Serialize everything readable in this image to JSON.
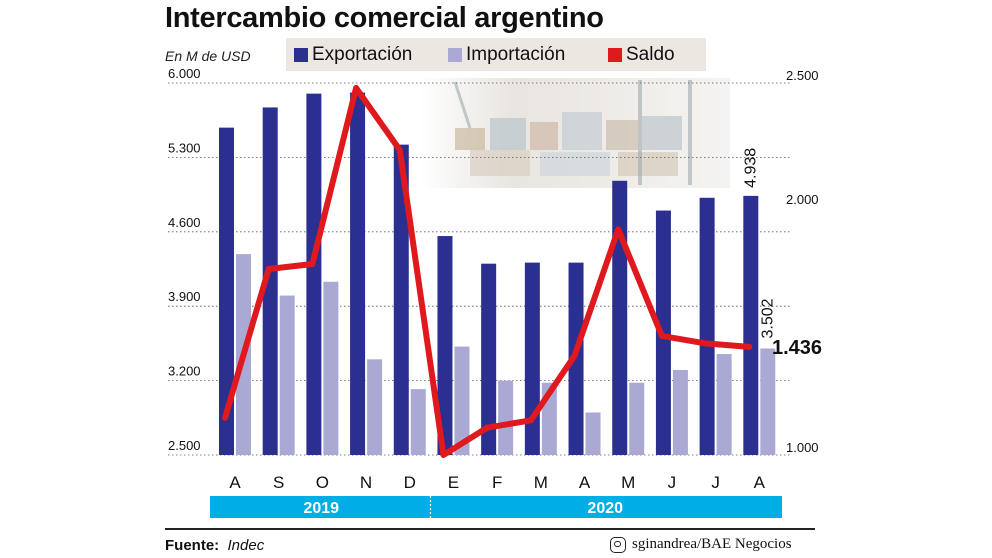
{
  "title": "Intercambio comercial argentino",
  "unit_label": "En M de USD",
  "source_label": "Fuente:",
  "source_value": "Indec",
  "credit": "sginandrea/BAE Negocios",
  "colors": {
    "exportacion": "#2b2f8f",
    "importacion": "#a9a9d4",
    "saldo": "#e0191f",
    "year_bar": "#00aee6",
    "legend_bg": "#ece7e0"
  },
  "chart_data": {
    "type": "bar",
    "categories": [
      "A",
      "S",
      "O",
      "N",
      "D",
      "E",
      "F",
      "M",
      "A",
      "M",
      "J",
      "J",
      "A"
    ],
    "years": [
      {
        "label": "2019",
        "span": [
          0,
          4
        ]
      },
      {
        "label": "2020",
        "span": [
          5,
          12
        ]
      }
    ],
    "series": [
      {
        "name": "Exportación",
        "type": "bar",
        "axis": "left",
        "values": [
          5580,
          5770,
          5900,
          5910,
          5420,
          4560,
          4300,
          4310,
          4310,
          5080,
          4800,
          4920,
          4938
        ]
      },
      {
        "name": "Importación",
        "type": "bar",
        "axis": "left",
        "values": [
          4390,
          4000,
          4130,
          3400,
          3120,
          3520,
          3200,
          3180,
          2900,
          3180,
          3300,
          3450,
          3502
        ]
      },
      {
        "name": "Saldo",
        "type": "line",
        "axis": "right",
        "values": [
          1150,
          1750,
          1770,
          2480,
          2230,
          1000,
          1110,
          1140,
          1400,
          1910,
          1480,
          1450,
          1436
        ]
      }
    ],
    "ylim_left": [
      2500,
      6000
    ],
    "yticks_left": [
      "2.500",
      "3.200",
      "3.900",
      "4.600",
      "5.300",
      "6.000"
    ],
    "ylim_right": [
      1000,
      2500
    ],
    "yticks_right": [
      "1.000",
      "2.000",
      "2.500"
    ],
    "annotations": {
      "export_last": "4.938",
      "import_last": "3.502",
      "saldo_last": "1.436"
    },
    "grid": "horizontal dashed"
  }
}
